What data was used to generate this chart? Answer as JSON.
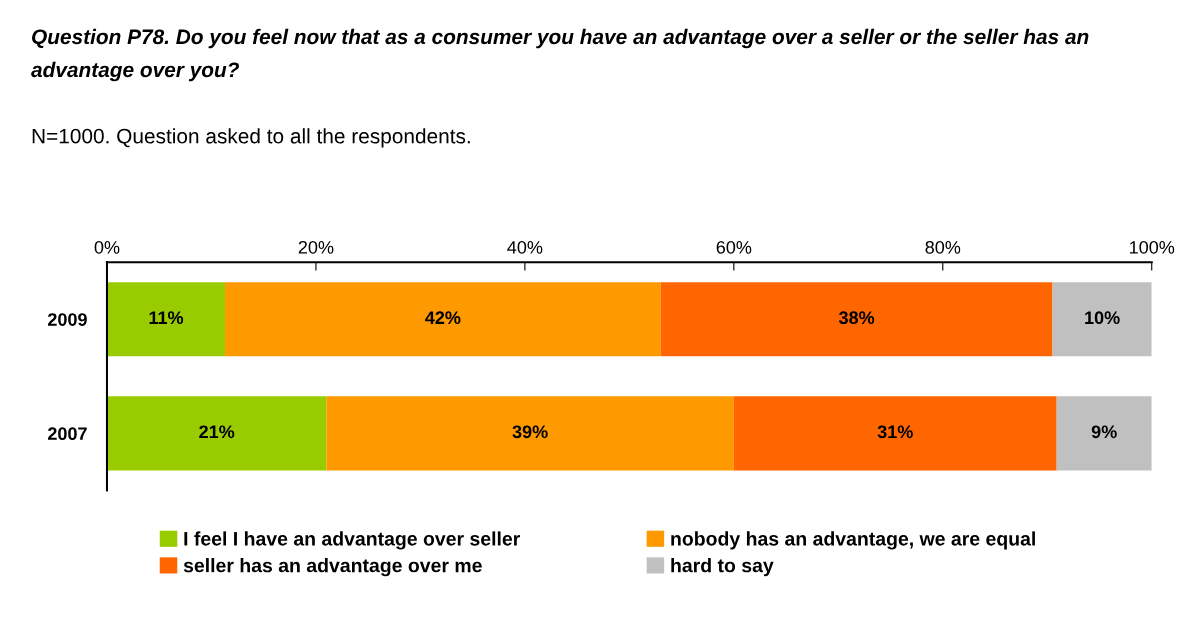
{
  "chart_data": {
    "type": "bar",
    "orientation": "horizontal",
    "stacked": true,
    "title": "Question P78. Do you feel now that as a consumer you have an advantage over a seller or the seller has an advantage over you?",
    "subtitle": "N=1000. Question asked to all the respondents.",
    "categories": [
      "2009",
      "2007"
    ],
    "series": [
      {
        "name": "I feel I have an advantage over seller",
        "color": "#99cc00",
        "values": [
          11.3,
          21.0
        ],
        "value_labels": [
          "11%",
          "21%"
        ]
      },
      {
        "name": "nobody has an advantage, we are equal",
        "color": "#ff9900",
        "values": [
          41.7,
          39.0
        ],
        "value_labels": [
          "42%",
          "39%"
        ]
      },
      {
        "name": "seller has an advantage over me",
        "color": "#ff6600",
        "values": [
          37.5,
          30.9
        ],
        "value_labels": [
          "38%",
          "31%"
        ]
      },
      {
        "name": "hard to say",
        "color": "#c0c0c0",
        "values": [
          9.5,
          9.1
        ],
        "value_labels": [
          "10%",
          "9%"
        ]
      }
    ],
    "xlim": [
      0,
      100
    ],
    "xticks": [
      {
        "value": 0,
        "label": "0%"
      },
      {
        "value": 20,
        "label": "20%"
      },
      {
        "value": 40,
        "label": "40%"
      },
      {
        "value": 60,
        "label": "60%"
      },
      {
        "value": 80,
        "label": "80%"
      },
      {
        "value": 100,
        "label": "100%"
      }
    ],
    "grid": false,
    "legend": "bottom"
  }
}
